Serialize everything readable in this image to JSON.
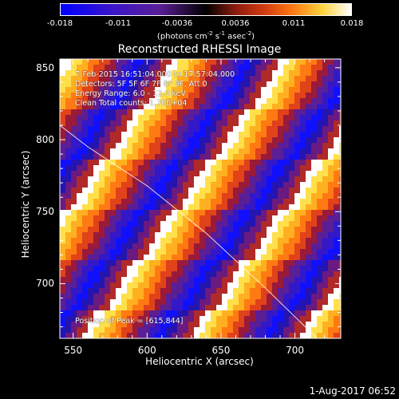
{
  "colorbar": {
    "ticks": [
      "-0.018",
      "-0.011",
      "-0.0036",
      "0.0036",
      "0.011",
      "0.018"
    ],
    "unit_prefix": "(photons cm",
    "unit_exp1": "-2",
    "unit_mid1": " s",
    "unit_exp2": "-1",
    "unit_mid2": " asec",
    "unit_exp3": "-2",
    "unit_suffix": ")"
  },
  "info_lines": {
    "time_range": "7-Feb-2015 16:51:04.000 to 17:57:04.000",
    "detectors": "Detectors: 5F 5F 6F 7F 8F 9F, Att 0",
    "energy": "Energy Range: 6.0 - 12.0 keV",
    "method": "Clean    Total counts: 1.70E+04",
    "peak": "Position of Peak = [615,844]"
  },
  "timestamp": "1-Aug-2017 06:52",
  "chart_data": {
    "type": "heatmap",
    "title": "Reconstructed RHESSI Image",
    "xlabel": "Heliocentric X (arcsec)",
    "ylabel": "Heliocentric Y (arcsec)",
    "xlim": [
      541,
      731
    ],
    "ylim": [
      662,
      856
    ],
    "xticks": [
      550,
      600,
      650,
      700
    ],
    "yticks": [
      700,
      750,
      800,
      850
    ],
    "colorscale_range": [
      -0.018,
      0.018
    ],
    "pattern": "diagonal stripes",
    "limb_curve": [
      [
        541,
        810
      ],
      [
        560,
        795
      ],
      [
        600,
        768
      ],
      [
        640,
        735
      ],
      [
        680,
        697
      ],
      [
        715,
        662
      ]
    ]
  }
}
